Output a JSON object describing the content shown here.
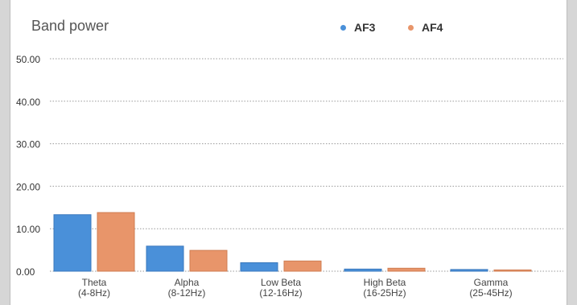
{
  "chart_data": {
    "type": "bar",
    "title": "Band power",
    "categories": [
      "Theta\n(4-8Hz)",
      "Alpha\n(8-12Hz)",
      "Low Beta\n(12-16Hz)",
      "High Beta\n(16-25Hz)",
      "Gamma\n(25-45Hz)"
    ],
    "series": [
      {
        "name": "AF3",
        "color": "#4a90d9",
        "values": [
          13.3,
          5.9,
          2.0,
          0.5,
          0.4
        ]
      },
      {
        "name": "AF4",
        "color": "#e8956a",
        "values": [
          13.8,
          4.9,
          2.4,
          0.7,
          0.3
        ]
      }
    ],
    "yticks": [
      "0.00",
      "10.00",
      "20.00",
      "30.00",
      "40.00",
      "50.00"
    ],
    "ylim": [
      0,
      50
    ],
    "grid": true,
    "legend_position": "top"
  }
}
